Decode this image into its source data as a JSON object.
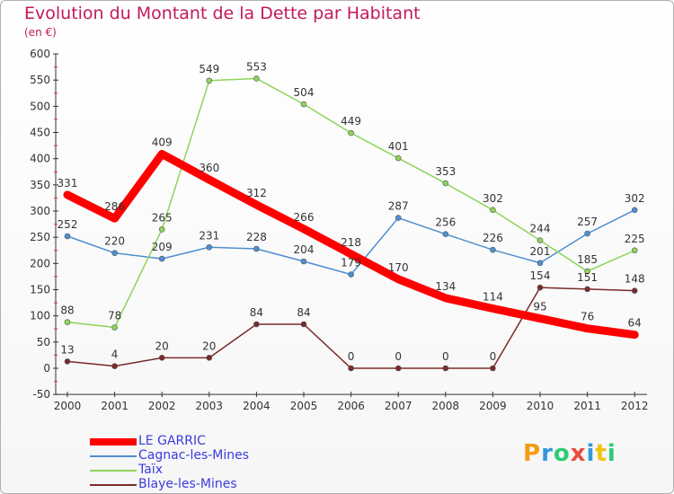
{
  "title": "Evolution du Montant de la Dette par Habitant",
  "unit_label": "(en €)",
  "logo_text": "Proxiti",
  "chart_data": {
    "type": "line",
    "title": "Evolution du Montant de la Dette par Habitant",
    "subtitle": "(en €)",
    "x": [
      "2000",
      "2001",
      "2002",
      "2003",
      "2004",
      "2005",
      "2006",
      "2007",
      "2008",
      "2009",
      "2010",
      "2011",
      "2012"
    ],
    "ylim": [
      -50,
      600
    ],
    "yticks": [
      -50,
      0,
      50,
      100,
      150,
      200,
      250,
      300,
      350,
      400,
      450,
      500,
      550,
      600
    ],
    "grid": false,
    "legend_position": "bottom-left",
    "series": [
      {
        "name": "LE GARRIC",
        "color": "#ff0000",
        "values": [
          331,
          286,
          409,
          360,
          312,
          266,
          218,
          170,
          134,
          114,
          95,
          76,
          64
        ]
      },
      {
        "name": "Cagnac-les-Mines",
        "color": "#4f8fd0",
        "values": [
          252,
          220,
          209,
          231,
          228,
          204,
          179,
          287,
          256,
          226,
          201,
          257,
          302
        ]
      },
      {
        "name": "Taïx",
        "color": "#8fd45a",
        "values": [
          88,
          78,
          265,
          549,
          553,
          504,
          449,
          401,
          353,
          302,
          244,
          185,
          225
        ]
      },
      {
        "name": "Blaye-les-Mines",
        "color": "#7a2a2a",
        "values": [
          13,
          4,
          20,
          20,
          84,
          84,
          0,
          0,
          0,
          0,
          154,
          151,
          148
        ]
      }
    ]
  }
}
